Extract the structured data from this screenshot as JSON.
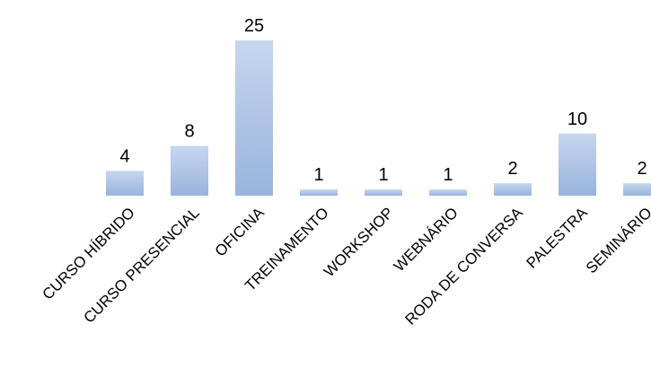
{
  "chart_data": {
    "type": "bar",
    "categories": [
      "CURSO HÍBRIDO",
      "CURSO PRESENCIAL",
      "OFICINA",
      "TREINAMENTO",
      "WORKSHOP",
      "WEBNÁRIO",
      "RODA DE CONVERSA",
      "PALESTRA",
      "SEMINÁRIO"
    ],
    "values": [
      4,
      8,
      25,
      1,
      1,
      1,
      2,
      10,
      2
    ],
    "data_labels": [
      "4",
      "8",
      "25",
      "1",
      "1",
      "1",
      "2",
      "10",
      "2"
    ],
    "ylim": [
      0,
      25
    ],
    "grid": false,
    "legend": "none",
    "bar_color_top": "#c6d6ef",
    "bar_color_bottom": "#98b4dc"
  }
}
